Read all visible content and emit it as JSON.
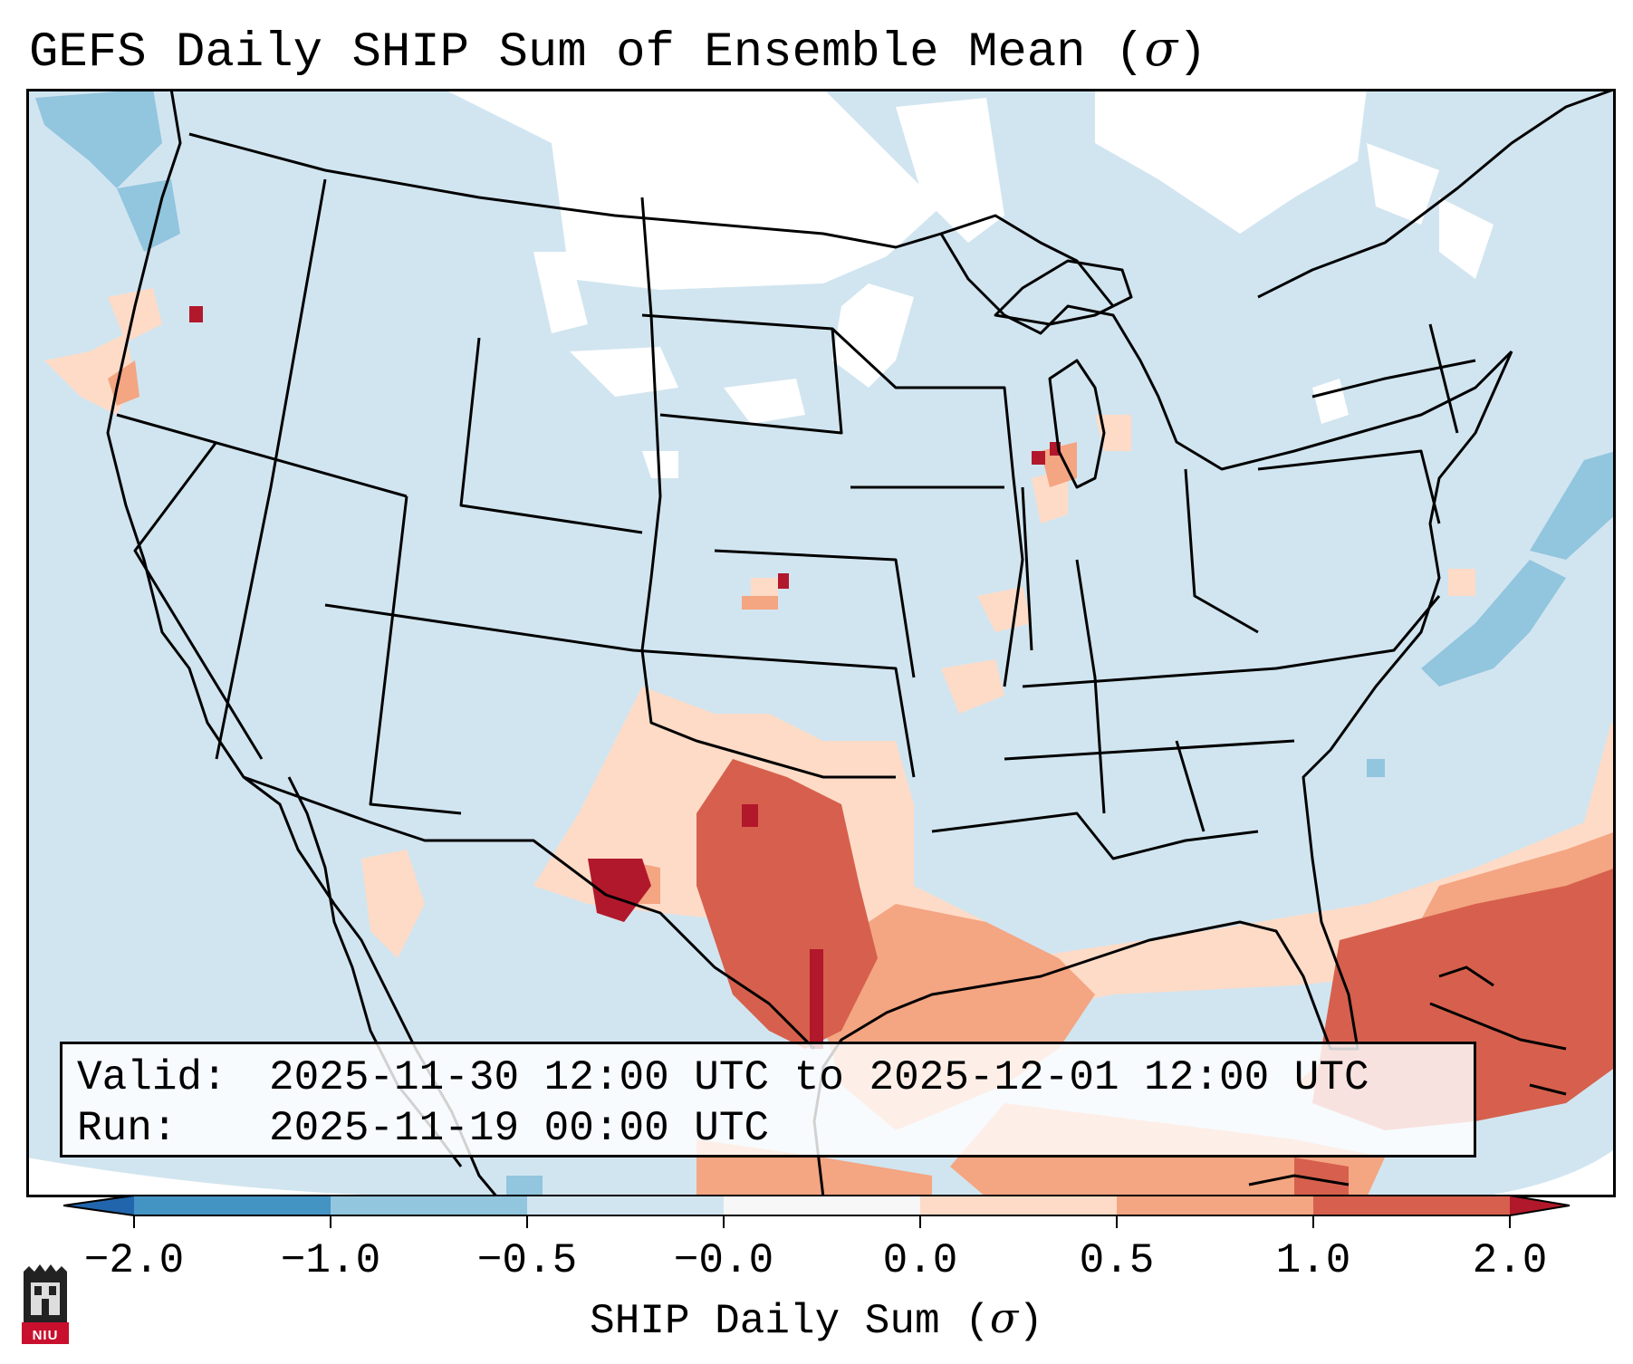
{
  "title": {
    "text": "GEFS Daily SHIP Sum of Ensemble Mean (",
    "sigma": "σ",
    "close": ")"
  },
  "info": {
    "valid_label": "Valid:",
    "valid_value": "2025-11-30 12:00 UTC to 2025-12-01 12:00 UTC",
    "run_label": "Run:",
    "run_value": "2025-11-19 00:00 UTC"
  },
  "colorbar": {
    "label": "SHIP Daily Sum (",
    "label_sigma": "σ",
    "label_close": ")",
    "ticks": [
      "−2.0",
      "−1.0",
      "−0.5",
      "−0.0",
      "0.0",
      "0.5",
      "1.0",
      "2.0"
    ],
    "bins": [
      {
        "from": -2.0,
        "to": -1.0,
        "color": "#4393c3"
      },
      {
        "from": -1.0,
        "to": -0.5,
        "color": "#92c5de"
      },
      {
        "from": -0.5,
        "to": -0.0,
        "color": "#d1e5f0"
      },
      {
        "from": -0.0,
        "to": 0.0,
        "color": "#f7f7f7"
      },
      {
        "from": 0.0,
        "to": 0.5,
        "color": "#fddbc7"
      },
      {
        "from": 0.5,
        "to": 1.0,
        "color": "#f4a582"
      },
      {
        "from": 1.0,
        "to": 2.0,
        "color": "#d6604d"
      }
    ],
    "under_color": "#2166ac",
    "over_color": "#b2182b"
  },
  "map": {
    "region": "Continental United States",
    "background_color": "#d1e5f0",
    "no_anomaly_color": "#ffffff"
  },
  "logo": {
    "text": "NIU"
  }
}
